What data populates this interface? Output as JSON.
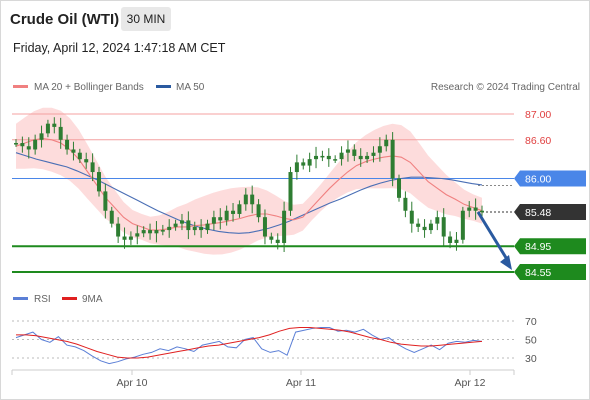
{
  "header": {
    "instrument": "Crude Oil (WTI)",
    "timeframe": "30 MIN",
    "datetime": "Friday, April 12, 2024 1:47:18 AM CET"
  },
  "legend": {
    "ma20_label": "MA 20 + Bollinger Bands",
    "ma50_label": "MA 50",
    "credit": "Research © 2024 Trading Central",
    "rsi_label": "RSI",
    "ma9_label": "9MA"
  },
  "colors": {
    "bollinger_fill": "#fdd6d6",
    "ma20": "#f08080",
    "ma50": "#4a6fb5",
    "candle": "#2e7d32",
    "red_level": "#f4a0a0",
    "blue_level": "#4a86e8",
    "green_level": "#1e8a1e",
    "current_price": "#333333",
    "arrow": "#2a5aa0",
    "rsi": "#5b7fd6",
    "rsi_ma": "#e02020"
  },
  "chart_data": [
    {
      "type": "candlestick",
      "title": "Crude Oil (WTI)",
      "timeframe": "30 MIN",
      "x_ticks": [
        "Apr 10",
        "Apr 11",
        "Apr 12"
      ],
      "ylim": [
        84.45,
        87.15
      ],
      "levels": [
        {
          "value": 87.0,
          "label": "87.00",
          "kind": "resistance"
        },
        {
          "value": 86.6,
          "label": "86.60",
          "kind": "resistance"
        },
        {
          "value": 86.0,
          "label": "86.00",
          "kind": "pivot"
        },
        {
          "value": 85.48,
          "label": "85.48",
          "kind": "last"
        },
        {
          "value": 84.95,
          "label": "84.95",
          "kind": "support"
        },
        {
          "value": 84.55,
          "label": "84.55",
          "kind": "support"
        }
      ],
      "close": [
        86.55,
        86.5,
        86.45,
        86.6,
        86.7,
        86.85,
        86.8,
        86.6,
        86.45,
        86.4,
        86.3,
        86.25,
        86.1,
        85.8,
        85.5,
        85.3,
        85.1,
        85.05,
        85.1,
        85.15,
        85.2,
        85.15,
        85.2,
        85.2,
        85.25,
        85.3,
        85.35,
        85.2,
        85.25,
        85.2,
        85.3,
        85.4,
        85.35,
        85.5,
        85.45,
        85.6,
        85.75,
        85.6,
        85.4,
        85.1,
        85.05,
        85.0,
        85.5,
        86.1,
        86.25,
        86.2,
        86.3,
        86.35,
        86.35,
        86.3,
        86.3,
        86.4,
        86.45,
        86.35,
        86.3,
        86.35,
        86.4,
        86.5,
        86.6,
        86.0,
        85.7,
        85.5,
        85.3,
        85.25,
        85.2,
        85.3,
        85.4,
        85.1,
        85.0,
        85.05,
        85.5,
        85.55,
        85.5,
        85.48
      ],
      "ma20": [
        86.5,
        86.55,
        86.6,
        86.62,
        86.6,
        86.55,
        86.45,
        86.3,
        86.1,
        85.9,
        85.7,
        85.55,
        85.4,
        85.3,
        85.25,
        85.2,
        85.2,
        85.22,
        85.25,
        85.25,
        85.27,
        85.28,
        85.3,
        85.32,
        85.35,
        85.38,
        85.42,
        85.45,
        85.45,
        85.42,
        85.38,
        85.36,
        85.4,
        85.55,
        85.7,
        85.85,
        85.98,
        86.1,
        86.2,
        86.26,
        86.3,
        86.33,
        86.35,
        86.33,
        86.25,
        86.1,
        85.95,
        85.85,
        85.75,
        85.68,
        85.6,
        85.55,
        85.5
      ],
      "ma50": [
        86.4,
        86.35,
        86.3,
        86.26,
        86.22,
        86.18,
        86.12,
        86.05,
        85.98,
        85.9,
        85.82,
        85.74,
        85.66,
        85.58,
        85.5,
        85.43,
        85.36,
        85.3,
        85.25,
        85.21,
        85.18,
        85.16,
        85.15,
        85.16,
        85.19,
        85.23,
        85.28,
        85.34,
        85.41,
        85.48,
        85.55,
        85.62,
        85.68,
        85.75,
        85.82,
        85.88,
        85.93,
        85.97,
        86.0,
        86.02,
        86.02,
        86.01,
        86.0,
        85.98,
        85.95,
        85.92,
        85.9
      ],
      "forecast": {
        "from": 85.48,
        "to": 84.55
      }
    },
    {
      "type": "line",
      "series": [
        {
          "name": "RSI",
          "values": [
            52,
            55,
            58,
            50,
            47,
            53,
            44,
            42,
            38,
            32,
            27,
            24,
            26,
            29,
            31,
            34,
            36,
            40,
            38,
            42,
            40,
            37,
            44,
            46,
            48,
            42,
            41,
            50,
            52,
            40,
            36,
            38,
            33,
            58,
            60,
            62,
            63,
            63,
            59,
            60,
            58,
            61,
            55,
            50,
            52,
            45,
            40,
            36,
            40,
            44,
            39,
            46,
            48,
            47,
            49,
            48
          ]
        },
        {
          "name": "9MA",
          "values": [
            55,
            55,
            54,
            52,
            50,
            48,
            45,
            41,
            37,
            34,
            31,
            30,
            30,
            31,
            33,
            35,
            37,
            39,
            41,
            43,
            44,
            46,
            48,
            50,
            52,
            55,
            59,
            62,
            63,
            63,
            62,
            61,
            60,
            58,
            55,
            52,
            50,
            47,
            45,
            44,
            43,
            43,
            44,
            45,
            46,
            47,
            48
          ]
        }
      ],
      "y_ticks": [
        "70",
        "50",
        "30"
      ],
      "ylim": [
        20,
        80
      ]
    }
  ]
}
